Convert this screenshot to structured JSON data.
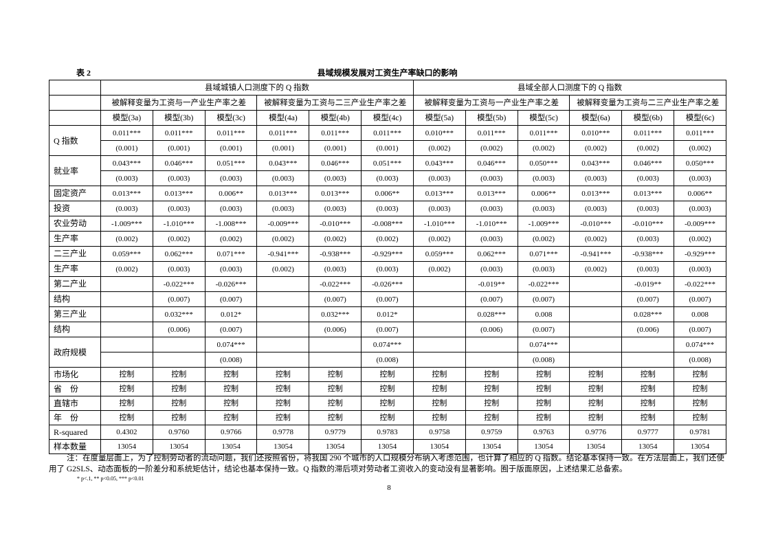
{
  "table_label": "表 2",
  "table_title": "县域规模发展对工资生产率缺口的影响",
  "group_headers": [
    "县域城镇人口测度下的 Q 指数",
    "县域全部人口测度下的 Q 指数"
  ],
  "sub_headers": [
    "被解释变量为工资与一产业生产率之差",
    "被解释变量为工资与二三产业生产率之差",
    "被解释变量为工资与一产业生产率之差",
    "被解释变量为工资与二三产业生产率之差"
  ],
  "models": [
    "模型(3a)",
    "模型(3b)",
    "模型(3c)",
    "模型(4a)",
    "模型(4b)",
    "模型(4c)",
    "模型(5a)",
    "模型(5b)",
    "模型(5c)",
    "模型(6a)",
    "模型(6b)",
    "模型(6c)"
  ],
  "variables": [
    {
      "label": "Q 指数",
      "coef": [
        "0.011***",
        "0.011***",
        "0.011***",
        "0.011***",
        "0.011***",
        "0.011***",
        "0.010***",
        "0.011***",
        "0.011***",
        "0.010***",
        "0.011***",
        "0.011***"
      ],
      "se": [
        "(0.001)",
        "(0.001)",
        "(0.001)",
        "(0.001)",
        "(0.001)",
        "(0.001)",
        "(0.002)",
        "(0.002)",
        "(0.002)",
        "(0.002)",
        "(0.002)",
        "(0.002)"
      ]
    },
    {
      "label": "就业率",
      "coef": [
        "0.043***",
        "0.046***",
        "0.051***",
        "0.043***",
        "0.046***",
        "0.051***",
        "0.043***",
        "0.046***",
        "0.050***",
        "0.043***",
        "0.046***",
        "0.050***"
      ],
      "se": [
        "(0.003)",
        "(0.003)",
        "(0.003)",
        "(0.003)",
        "(0.003)",
        "(0.003)",
        "(0.003)",
        "(0.003)",
        "(0.003)",
        "(0.003)",
        "(0.003)",
        "(0.003)"
      ]
    },
    {
      "label_top": "固定资产",
      "label_bottom": "投资",
      "coef": [
        "0.013***",
        "0.013***",
        "0.006**",
        "0.013***",
        "0.013***",
        "0.006**",
        "0.013***",
        "0.013***",
        "0.006**",
        "0.013***",
        "0.013***",
        "0.006**"
      ],
      "se": [
        "(0.003)",
        "(0.003)",
        "(0.003)",
        "(0.003)",
        "(0.003)",
        "(0.003)",
        "(0.003)",
        "(0.003)",
        "(0.003)",
        "(0.003)",
        "(0.003)",
        "(0.003)"
      ]
    },
    {
      "label_top": "农业劳动",
      "label_bottom": "生产率",
      "coef": [
        "-1.009***",
        "-1.010***",
        "-1.008***",
        "-0.009***",
        "-0.010***",
        "-0.008***",
        "-1.010***",
        "-1.010***",
        "-1.009***",
        "-0.010***",
        "-0.010***",
        "-0.009***"
      ],
      "se": [
        "(0.002)",
        "(0.002)",
        "(0.002)",
        "(0.002)",
        "(0.002)",
        "(0.002)",
        "(0.002)",
        "(0.003)",
        "(0.002)",
        "(0.002)",
        "(0.003)",
        "(0.002)"
      ]
    },
    {
      "label_top": "二三产业",
      "label_bottom": "生产率",
      "coef": [
        "0.059***",
        "0.062***",
        "0.071***",
        "-0.941***",
        "-0.938***",
        "-0.929***",
        "0.059***",
        "0.062***",
        "0.071***",
        "-0.941***",
        "-0.938***",
        "-0.929***"
      ],
      "se": [
        "(0.002)",
        "(0.003)",
        "(0.003)",
        "(0.002)",
        "(0.003)",
        "(0.003)",
        "(0.002)",
        "(0.003)",
        "(0.003)",
        "(0.002)",
        "(0.003)",
        "(0.003)"
      ]
    },
    {
      "label_top": "第二产业",
      "label_bottom": "结构",
      "coef": [
        "",
        "-0.022***",
        "-0.026***",
        "",
        "-0.022***",
        "-0.026***",
        "",
        "-0.019**",
        "-0.022***",
        "",
        "-0.019**",
        "-0.022***"
      ],
      "se": [
        "",
        "(0.007)",
        "(0.007)",
        "",
        "(0.007)",
        "(0.007)",
        "",
        "(0.007)",
        "(0.007)",
        "",
        "(0.007)",
        "(0.007)"
      ]
    },
    {
      "label_top": "第三产业",
      "label_bottom": "结构",
      "coef": [
        "",
        "0.032***",
        "0.012*",
        "",
        "0.032***",
        "0.012*",
        "",
        "0.028***",
        "0.008",
        "",
        "0.028***",
        "0.008"
      ],
      "se": [
        "",
        "(0.006)",
        "(0.007)",
        "",
        "(0.006)",
        "(0.007)",
        "",
        "(0.006)",
        "(0.007)",
        "",
        "(0.006)",
        "(0.007)"
      ]
    },
    {
      "label": "政府规模",
      "coef": [
        "",
        "",
        "0.074***",
        "",
        "",
        "0.074***",
        "",
        "",
        "0.074***",
        "",
        "",
        "0.074***"
      ],
      "se": [
        "",
        "",
        "(0.008)",
        "",
        "",
        "(0.008)",
        "",
        "",
        "(0.008)",
        "",
        "",
        "(0.008)"
      ]
    }
  ],
  "controls": [
    {
      "label": "市场化",
      "values": [
        "控制",
        "控制",
        "控制",
        "控制",
        "控制",
        "控制",
        "控制",
        "控制",
        "控制",
        "控制",
        "控制",
        "控制"
      ]
    },
    {
      "label": "省　份",
      "values": [
        "控制",
        "控制",
        "控制",
        "控制",
        "控制",
        "控制",
        "控制",
        "控制",
        "控制",
        "控制",
        "控制",
        "控制"
      ]
    },
    {
      "label": "直辖市",
      "values": [
        "控制",
        "控制",
        "控制",
        "控制",
        "控制",
        "控制",
        "控制",
        "控制",
        "控制",
        "控制",
        "控制",
        "控制"
      ]
    },
    {
      "label": "年　份",
      "values": [
        "控制",
        "控制",
        "控制",
        "控制",
        "控制",
        "控制",
        "控制",
        "控制",
        "控制",
        "控制",
        "控制",
        "控制"
      ]
    },
    {
      "label": "R-squared",
      "values": [
        "0.4302",
        "0.9760",
        "0.9766",
        "0.9778",
        "0.9779",
        "0.9783",
        "0.9758",
        "0.9759",
        "0.9763",
        "0.9776",
        "0.9777",
        "0.9781"
      ]
    },
    {
      "label": "样本数量",
      "values": [
        "13054",
        "13054",
        "13054",
        "13054",
        "13054",
        "13054",
        "13054",
        "13054",
        "13054",
        "13054",
        "13054",
        "13054"
      ]
    }
  ],
  "note": "注：在度量层面上，为了控制劳动者的流动问题，我们还按照省份，将我国 290 个城市的人口规模分布纳入考虑范围，也计算了相应的 Q 指数。结论基本保持一致。在方法层面上，我们还使用了 G2SLS、动态面板的一阶差分和系统矩估计，结论也基本保持一致。Q 指数的滞后项对劳动者工资收入的变动没有显著影响。囿于版面原因，上述结果汇总备索。",
  "significance": "* p<.1, ** p<0.05, *** p<0.01",
  "page_number": "8"
}
